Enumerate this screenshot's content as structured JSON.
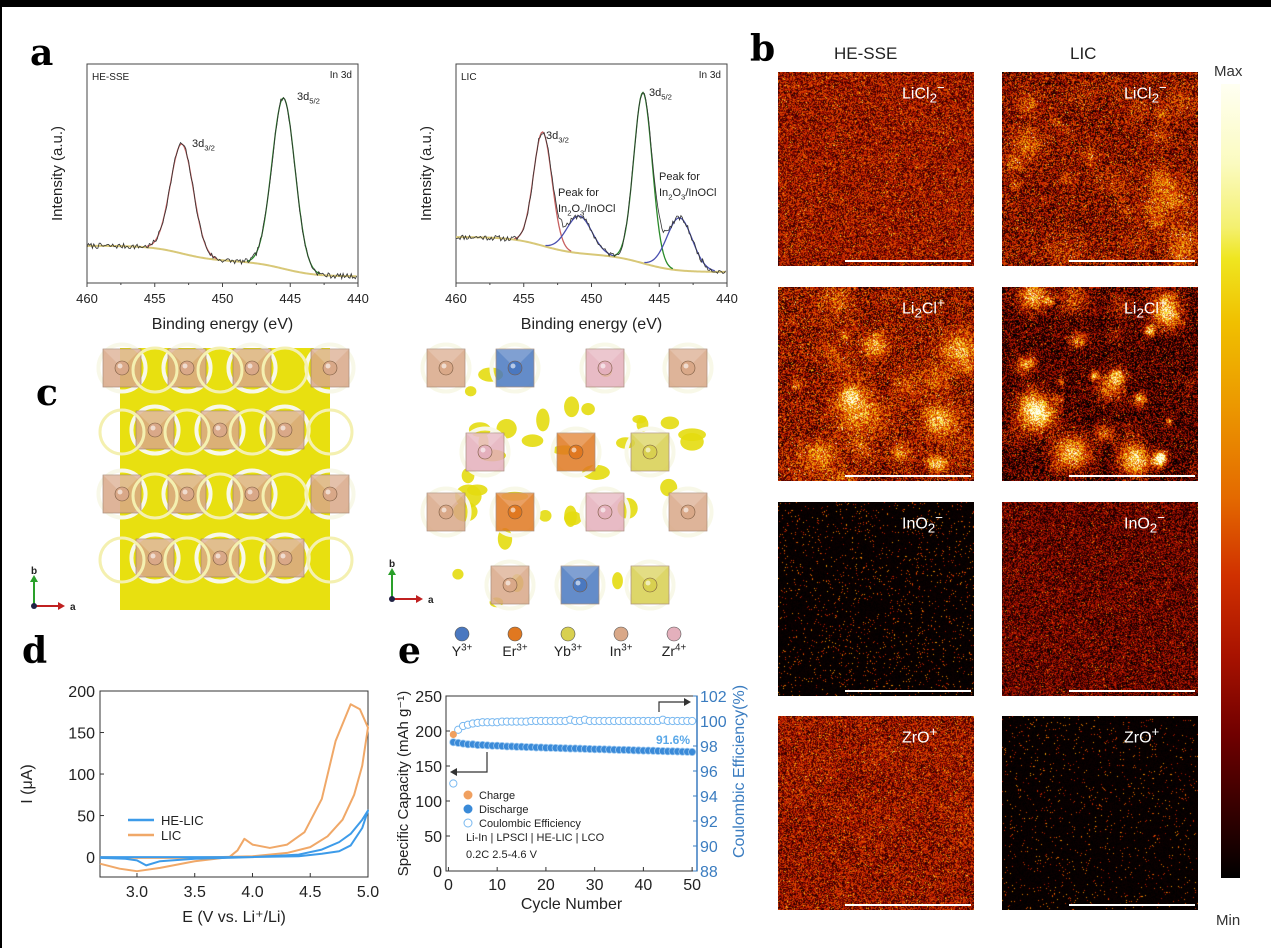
{
  "panel_letters": {
    "a": "a",
    "b": "b",
    "c": "c",
    "d": "d",
    "e": "e"
  },
  "panel_b": {
    "column_headers": [
      "HE-SSE",
      "LIC"
    ],
    "colorbar": {
      "max_label": "Max",
      "min_label": "Min"
    },
    "maps": [
      {
        "label": "LiCl",
        "sub": "2",
        "sup": "−"
      },
      {
        "label": "Li",
        "sub": "2",
        "mid": "Cl",
        "sup": "+"
      },
      {
        "label": "InO",
        "sub": "2",
        "sup": "−"
      },
      {
        "label": "ZrO",
        "sub": "",
        "sup": "+"
      }
    ]
  },
  "panel_c": {
    "axes_left": {
      "b": "b",
      "a": "a"
    },
    "axes_right": {
      "b": "b",
      "a": "a"
    },
    "legend": [
      {
        "ion": "Y",
        "charge": "3+",
        "color": "#4a78c0"
      },
      {
        "ion": "Er",
        "charge": "3+",
        "color": "#e07820"
      },
      {
        "ion": "Yb",
        "charge": "3+",
        "color": "#d8d050"
      },
      {
        "ion": "In",
        "charge": "3+",
        "color": "#d9a888"
      },
      {
        "ion": "Zr",
        "charge": "4+",
        "color": "#e4b0bc"
      }
    ]
  },
  "chart_data": [
    {
      "id": "a-left",
      "type": "line",
      "title": "HE-SSE",
      "annotation": "In 3d",
      "xlabel": "Binding energy (eV)",
      "ylabel": "Intensity (a.u.)",
      "xlim": [
        460,
        440
      ],
      "ylim": [
        0,
        1
      ],
      "xticks": [
        460,
        455,
        450,
        445,
        440
      ],
      "baseline": {
        "high_energy": 0.17,
        "low_energy": 0.03
      },
      "peaks": [
        {
          "name": "3d3/2",
          "main": "3d",
          "sub": "3/2",
          "center": 453.0,
          "height": 0.5,
          "fwhm": 2.0,
          "color": "#c86060"
        },
        {
          "name": "3d5/2",
          "main": "3d",
          "sub": "5/2",
          "center": 445.5,
          "height": 0.78,
          "fwhm": 2.0,
          "color": "#2a8a2a"
        }
      ]
    },
    {
      "id": "a-right",
      "type": "line",
      "title": "LIC",
      "annotation": "In 3d",
      "xlabel": "Binding energy (eV)",
      "ylabel": "Intensity (a.u.)",
      "xlim": [
        460,
        440
      ],
      "ylim": [
        0,
        1
      ],
      "xticks": [
        460,
        455,
        450,
        445,
        440
      ],
      "baseline": {
        "high_energy": 0.21,
        "low_energy": 0.05
      },
      "peaks": [
        {
          "name": "3d3/2",
          "main": "3d",
          "sub": "3/2",
          "center": 453.6,
          "height": 0.52,
          "fwhm": 1.6,
          "color": "#c86060"
        },
        {
          "name": "3d5/2",
          "main": "3d",
          "sub": "5/2",
          "center": 446.2,
          "height": 0.78,
          "fwhm": 1.6,
          "color": "#2a8a2a"
        },
        {
          "name": "oxide-1",
          "center": 450.9,
          "height": 0.17,
          "fwhm": 2.2,
          "color": "#4a50b0"
        },
        {
          "name": "oxide-2",
          "center": 443.5,
          "height": 0.24,
          "fwhm": 2.2,
          "color": "#4a50b0"
        }
      ],
      "peak_labels": [
        {
          "line1": "Peak for",
          "line2_main": "In",
          "s1": "2",
          "m2": "O",
          "s2": "3",
          "tail": "/InOCl"
        },
        {
          "line1": "Peak for",
          "line2_main": "In",
          "s1": "2",
          "m2": "O",
          "s2": "3",
          "tail": "/InOCl"
        }
      ]
    },
    {
      "id": "d",
      "type": "line",
      "xlabel": "E (V vs. Li⁺/Li)",
      "ylabel": "I (μA)",
      "xlim": [
        2.68,
        5.0
      ],
      "ylim": [
        -24,
        200
      ],
      "xticks": [
        3.0,
        3.5,
        4.0,
        4.5,
        5.0
      ],
      "yticks": [
        0,
        50,
        100,
        150,
        200
      ],
      "series": [
        {
          "name": "HE-LIC",
          "color": "#3d9be9",
          "x": [
            2.68,
            2.9,
            3.0,
            3.08,
            3.2,
            3.5,
            4.0,
            4.4,
            4.6,
            4.75,
            4.85,
            4.95,
            5.0,
            4.95,
            4.85,
            4.75,
            4.6,
            4.4,
            4.0,
            3.5,
            3.0,
            2.68
          ],
          "y": [
            -1,
            -2,
            -4,
            -10,
            -5,
            -2,
            0,
            3,
            9,
            18,
            28,
            45,
            56,
            35,
            14,
            7,
            4,
            1,
            0,
            0,
            0,
            0
          ]
        },
        {
          "name": "LIC",
          "color": "#f0a868",
          "x": [
            2.68,
            2.85,
            3.0,
            3.2,
            3.5,
            3.8,
            3.87,
            3.93,
            4.0,
            4.15,
            4.3,
            4.45,
            4.6,
            4.72,
            4.85,
            4.93,
            5.0,
            4.95,
            4.88,
            4.78,
            4.65,
            4.5,
            4.3,
            4.0,
            3.7,
            3.4,
            3.0,
            2.68
          ],
          "y": [
            -8,
            -14,
            -17,
            -13,
            -5,
            0,
            8,
            22,
            15,
            11,
            15,
            30,
            70,
            140,
            184,
            178,
            156,
            110,
            75,
            45,
            25,
            12,
            5,
            1,
            0,
            -1,
            -1,
            0
          ]
        }
      ]
    },
    {
      "id": "e",
      "type": "scatter",
      "xlabel": "Cycle Number",
      "ylabel": "Specific Capacity (mAh g⁻¹)",
      "y2label": "Coulombic Efficiency(%)",
      "xlim": [
        -0.5,
        51
      ],
      "ylim": [
        0,
        250
      ],
      "y2lim": [
        88,
        102
      ],
      "xticks": [
        0,
        10,
        20,
        30,
        40,
        50
      ],
      "yticks": [
        0,
        50,
        100,
        150,
        200,
        250
      ],
      "y2ticks": [
        88,
        90,
        92,
        94,
        96,
        98,
        100,
        102
      ],
      "annotation": "91.6%",
      "legend": [
        "Charge",
        "Discharge",
        "Coulombic Efficiency"
      ],
      "notes": [
        "Li-In | LPSCl | HE-LIC | LCO",
        "0.2C 2.5-4.6 V"
      ],
      "charge": {
        "x": [
          1
        ],
        "y": [
          195
        ],
        "color": "#f0a060"
      },
      "discharge": {
        "color": "#3a8ad8",
        "y": [
          184,
          183,
          182,
          181,
          181,
          180,
          180,
          179.5,
          179,
          179,
          178.5,
          178,
          178,
          177.5,
          177.5,
          177,
          177,
          176.5,
          176.5,
          176,
          176,
          175.8,
          175.5,
          175.3,
          175,
          175,
          174.8,
          174.5,
          174.3,
          174,
          174,
          173.8,
          173.5,
          173.3,
          173,
          173,
          172.8,
          172.5,
          172.3,
          172,
          172,
          171.8,
          171.5,
          171.3,
          171,
          171,
          170.8,
          170.5,
          170.3,
          170
        ]
      },
      "ce": {
        "color": "#78b8f0",
        "y": [
          95,
          99.3,
          99.6,
          99.7,
          99.8,
          99.85,
          99.9,
          99.9,
          99.9,
          99.9,
          99.95,
          99.95,
          99.95,
          99.95,
          99.95,
          99.95,
          100,
          100,
          100,
          100,
          100,
          100,
          100,
          100,
          100.1,
          100,
          100,
          100.1,
          100,
          100,
          100,
          100,
          100,
          100,
          100,
          100,
          100,
          100,
          100,
          100,
          100,
          100,
          100,
          100.1,
          100,
          100,
          100,
          100,
          100,
          100
        ]
      }
    }
  ]
}
